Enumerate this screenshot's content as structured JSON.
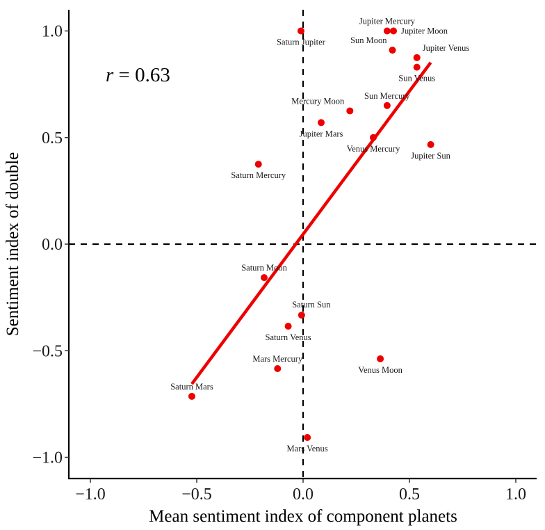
{
  "chart_data": {
    "type": "scatter",
    "title": "",
    "xlabel": "Mean sentiment index of component planets",
    "ylabel": "Sentiment index of double",
    "xlim": [
      -1.1,
      1.1
    ],
    "ylim": [
      -1.1,
      1.1
    ],
    "xticks": [
      -1.0,
      -0.5,
      0.0,
      0.5,
      1.0
    ],
    "yticks": [
      -1.0,
      -0.5,
      0.0,
      0.5,
      1.0
    ],
    "xtick_labels": [
      "−1.0",
      "−0.5",
      "0.0",
      "0.5",
      "1.0"
    ],
    "ytick_labels": [
      "−1.0",
      "−0.5",
      "0.0",
      "0.5",
      "1.0"
    ],
    "grid": false,
    "legend": "none",
    "reference_lines": [
      {
        "orientation": "vertical",
        "value": 0.0,
        "style": "dashed",
        "color": "#000000"
      },
      {
        "orientation": "horizontal",
        "value": 0.0,
        "style": "dashed",
        "color": "#000000"
      }
    ],
    "annotation": {
      "var": "r",
      "text": " = 0.63"
    },
    "point_color": "#ee0000",
    "points": [
      {
        "label": "Saturn Jupiter",
        "x": -0.01,
        "y": 1.0,
        "label_pos": "below"
      },
      {
        "label": "Jupiter Mercury",
        "x": 0.395,
        "y": 1.0,
        "label_pos": "above"
      },
      {
        "label": "Jupiter Moon",
        "x": 0.425,
        "y": 1.0,
        "label_pos": "right"
      },
      {
        "label": "Sun Moon",
        "x": 0.42,
        "y": 0.91,
        "label_pos": "upper-left"
      },
      {
        "label": "Jupiter Venus",
        "x": 0.535,
        "y": 0.875,
        "label_pos": "upper-right"
      },
      {
        "label": "Sun Venus",
        "x": 0.535,
        "y": 0.83,
        "label_pos": "below"
      },
      {
        "label": "Sun Mercury",
        "x": 0.395,
        "y": 0.65,
        "label_pos": "above"
      },
      {
        "label": "Mercury Moon",
        "x": 0.22,
        "y": 0.625,
        "label_pos": "upper-left"
      },
      {
        "label": "Jupiter Mars",
        "x": 0.085,
        "y": 0.57,
        "label_pos": "below"
      },
      {
        "label": "Venus Mercury",
        "x": 0.33,
        "y": 0.5,
        "label_pos": "below"
      },
      {
        "label": "Jupiter Sun",
        "x": 0.6,
        "y": 0.467,
        "label_pos": "below"
      },
      {
        "label": "Saturn Mercury",
        "x": -0.21,
        "y": 0.375,
        "label_pos": "below"
      },
      {
        "label": "Saturn Moon",
        "x": -0.183,
        "y": -0.157,
        "label_pos": "above"
      },
      {
        "label": "Saturn Sun",
        "x": -0.007,
        "y": -0.333,
        "label_pos": "above-right"
      },
      {
        "label": "Saturn Venus",
        "x": -0.07,
        "y": -0.385,
        "label_pos": "below"
      },
      {
        "label": "Mars Mercury",
        "x": -0.12,
        "y": -0.584,
        "label_pos": "above"
      },
      {
        "label": "Venus Moon",
        "x": 0.363,
        "y": -0.538,
        "label_pos": "below"
      },
      {
        "label": "Saturn Mars",
        "x": -0.523,
        "y": -0.714,
        "label_pos": "above"
      },
      {
        "label": "Mars Venus",
        "x": 0.02,
        "y": -0.907,
        "label_pos": "below"
      }
    ],
    "regression_line": {
      "color": "#ee0000",
      "x": [
        -0.523,
        0.6
      ],
      "y": [
        -0.656,
        0.852
      ]
    }
  }
}
